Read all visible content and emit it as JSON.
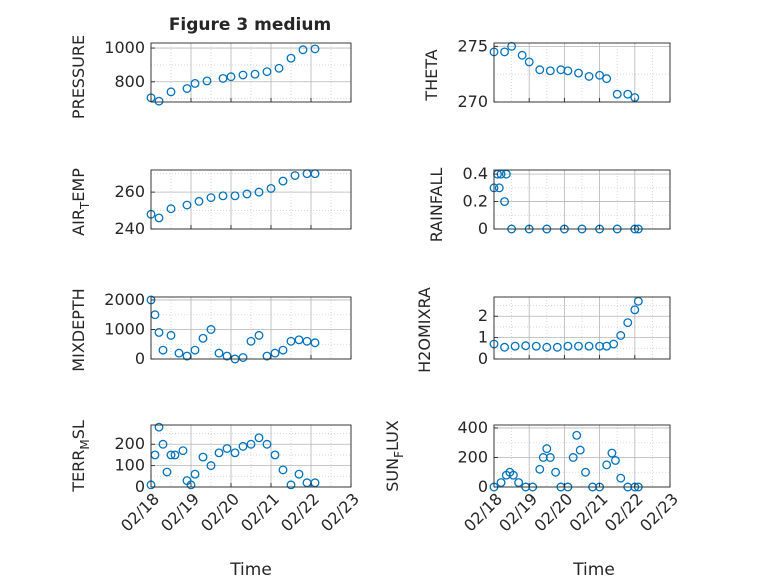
{
  "figure_title": "Figure 3 medium",
  "colors": {
    "marker": "#0072BD",
    "axis": "#262626",
    "grid": "#b8b8b8",
    "background": "#ffffff"
  },
  "chart_data": [
    {
      "type": "scatter",
      "ylabel": "PRESSURE",
      "ylim": [
        680,
        1030
      ],
      "yticks": [
        800,
        1000
      ],
      "x": [
        "02/18",
        "02/18",
        "02/18",
        "02/19",
        "02/19",
        "02/19",
        "02/19",
        "02/20",
        "02/20",
        "02/20",
        "02/20",
        "02/21",
        "02/21",
        "02/21",
        "02/22"
      ],
      "x_days": [
        0.0,
        0.2,
        0.5,
        0.9,
        1.1,
        1.4,
        1.8,
        2.0,
        2.3,
        2.6,
        2.9,
        3.2,
        3.5,
        3.8,
        4.1
      ],
      "values": [
        705,
        685,
        740,
        760,
        790,
        805,
        820,
        830,
        840,
        845,
        860,
        880,
        940,
        990,
        995
      ]
    },
    {
      "type": "scatter",
      "ylabel": "THETA",
      "ylim": [
        270,
        275.3
      ],
      "yticks": [
        270,
        275
      ],
      "x_days": [
        0.0,
        0.3,
        0.5,
        0.8,
        1.0,
        1.3,
        1.6,
        1.9,
        2.1,
        2.4,
        2.7,
        3.0,
        3.2,
        3.5,
        3.8,
        4.0
      ],
      "values": [
        274.5,
        274.5,
        275.0,
        274.2,
        273.6,
        272.9,
        272.8,
        272.9,
        272.8,
        272.6,
        272.3,
        272.4,
        272.1,
        270.7,
        270.7,
        270.4
      ]
    },
    {
      "type": "scatter",
      "ylabel": "AIR_TEMP",
      "ylim": [
        240,
        272
      ],
      "yticks": [
        240,
        260
      ],
      "x_days": [
        0.0,
        0.2,
        0.5,
        0.9,
        1.2,
        1.5,
        1.8,
        2.1,
        2.4,
        2.7,
        3.0,
        3.3,
        3.6,
        3.9,
        4.1
      ],
      "values": [
        248,
        246,
        251,
        253,
        255,
        257,
        258,
        258,
        259,
        260,
        262,
        266,
        269,
        270,
        270
      ]
    },
    {
      "type": "scatter",
      "ylabel": "RAINFALL",
      "ylim": [
        0,
        0.43
      ],
      "yticks": [
        0,
        0.2,
        0.4
      ],
      "x_days": [
        0.0,
        0.1,
        0.15,
        0.2,
        0.3,
        0.35,
        0.5,
        1.0,
        1.5,
        2.0,
        2.5,
        3.0,
        3.5,
        4.0,
        4.1
      ],
      "values": [
        0.3,
        0.4,
        0.3,
        0.4,
        0.2,
        0.4,
        0,
        0,
        0,
        0,
        0,
        0,
        0,
        0,
        0
      ]
    },
    {
      "type": "scatter",
      "ylabel": "MIXDEPTH",
      "ylim": [
        0,
        2100
      ],
      "yticks": [
        0,
        1000,
        2000
      ],
      "x_days": [
        0.0,
        0.1,
        0.2,
        0.3,
        0.5,
        0.7,
        0.9,
        1.1,
        1.3,
        1.5,
        1.7,
        1.9,
        2.1,
        2.3,
        2.5,
        2.7,
        2.9,
        3.1,
        3.3,
        3.5,
        3.7,
        3.9,
        4.1
      ],
      "values": [
        2000,
        1500,
        900,
        300,
        800,
        200,
        100,
        300,
        700,
        1000,
        200,
        100,
        0,
        50,
        600,
        800,
        100,
        200,
        300,
        600,
        650,
        600,
        550
      ]
    },
    {
      "type": "scatter",
      "ylabel": "H2OMIXRA",
      "ylim": [
        0,
        2.9
      ],
      "yticks": [
        0,
        1,
        2
      ],
      "x_days": [
        0.0,
        0.3,
        0.6,
        0.9,
        1.2,
        1.5,
        1.8,
        2.1,
        2.4,
        2.7,
        3.0,
        3.2,
        3.4,
        3.6,
        3.8,
        4.0,
        4.1
      ],
      "values": [
        0.7,
        0.55,
        0.6,
        0.62,
        0.6,
        0.55,
        0.55,
        0.6,
        0.6,
        0.6,
        0.6,
        0.6,
        0.7,
        1.1,
        1.7,
        2.3,
        2.7
      ]
    },
    {
      "type": "scatter",
      "ylabel": "TERR_MSL",
      "ylim": [
        0,
        290
      ],
      "yticks": [
        0,
        100,
        200
      ],
      "x_days": [
        0.0,
        0.1,
        0.2,
        0.3,
        0.4,
        0.5,
        0.6,
        0.8,
        0.9,
        1.0,
        1.1,
        1.3,
        1.5,
        1.7,
        1.9,
        2.1,
        2.3,
        2.5,
        2.7,
        2.9,
        3.1,
        3.3,
        3.5,
        3.7,
        3.9,
        4.1
      ],
      "values": [
        10,
        150,
        280,
        200,
        70,
        150,
        150,
        170,
        30,
        10,
        60,
        140,
        100,
        160,
        180,
        160,
        190,
        200,
        230,
        200,
        150,
        80,
        10,
        60,
        20,
        20
      ]
    },
    {
      "type": "scatter",
      "ylabel": "SUN_FLUX",
      "ylim": [
        0,
        420
      ],
      "yticks": [
        0,
        200,
        400
      ],
      "x_days": [
        0.0,
        0.2,
        0.35,
        0.45,
        0.55,
        0.7,
        0.9,
        1.1,
        1.3,
        1.4,
        1.5,
        1.6,
        1.75,
        1.9,
        2.1,
        2.25,
        2.35,
        2.45,
        2.6,
        2.8,
        3.0,
        3.2,
        3.35,
        3.45,
        3.6,
        3.8,
        4.0,
        4.1
      ],
      "values": [
        0,
        30,
        80,
        100,
        80,
        30,
        0,
        0,
        120,
        200,
        260,
        200,
        100,
        0,
        0,
        200,
        350,
        250,
        100,
        0,
        0,
        150,
        230,
        180,
        60,
        0,
        0,
        0
      ]
    }
  ],
  "ylabels": {
    "p0": "PRESSURE",
    "p1": "THETA",
    "p2_main": "AIR",
    "p2_sub": "T",
    "p2_tail": "EMP",
    "p3": "RAINFALL",
    "p4": "MIXDEPTH",
    "p5": "H2OMIXRA",
    "p6_main": "TERR",
    "p6_sub": "M",
    "p6_tail": "SL",
    "p7_main": "SUN",
    "p7_sub": "F",
    "p7_tail": "LUX"
  },
  "x_axis": {
    "label": "Time",
    "range_days": [
      0,
      5
    ],
    "tick_days": [
      0,
      1,
      2,
      3,
      4,
      5
    ],
    "tick_labels": [
      "02/18",
      "02/19",
      "02/20",
      "02/21",
      "02/22",
      "02/23"
    ]
  }
}
